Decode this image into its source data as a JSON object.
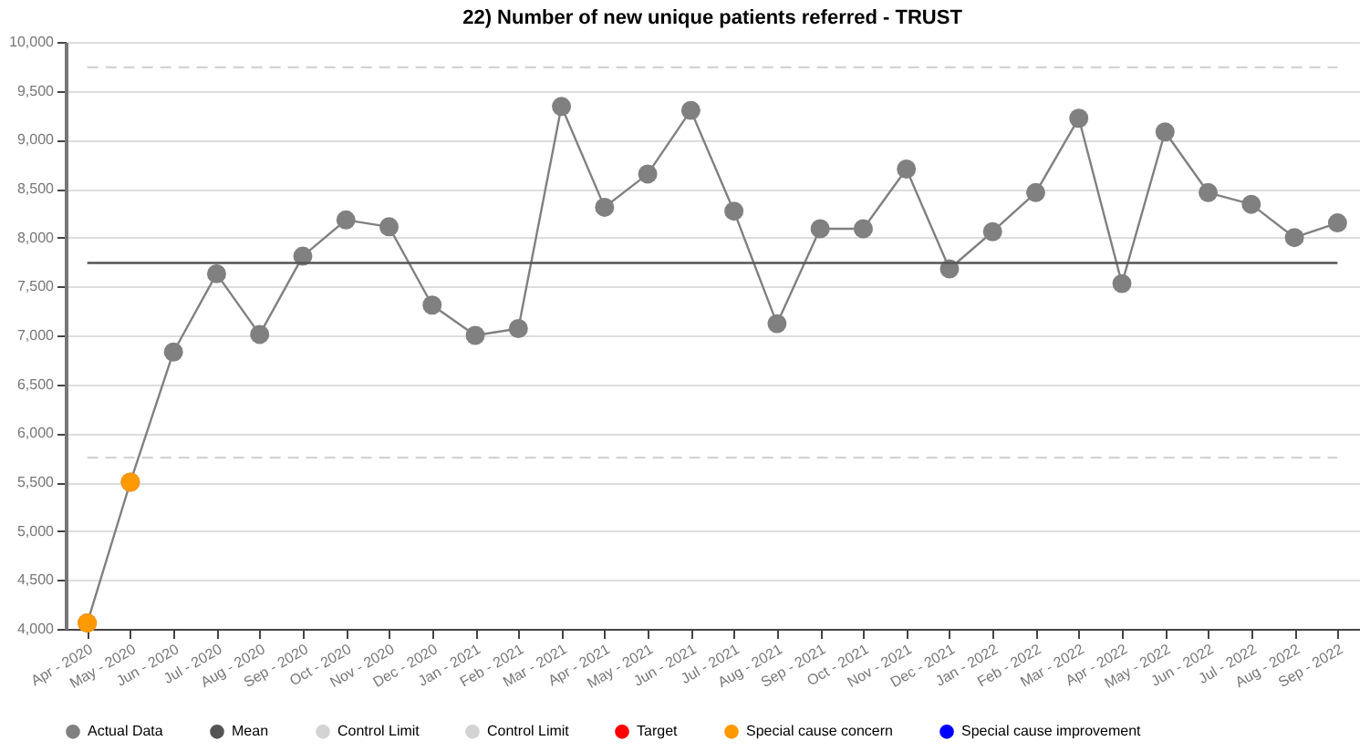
{
  "chart_data": {
    "type": "line",
    "title": "22) Number of new unique patients referred - TRUST",
    "categories": [
      "Apr - 2020",
      "May - 2020",
      "Jun - 2020",
      "Jul - 2020",
      "Aug - 2020",
      "Sep - 2020",
      "Oct - 2020",
      "Nov - 2020",
      "Dec - 2020",
      "Jan - 2021",
      "Feb - 2021",
      "Mar - 2021",
      "Apr - 2021",
      "May - 2021",
      "Jun - 2021",
      "Jul - 2021",
      "Aug - 2021",
      "Sep - 2021",
      "Oct - 2021",
      "Nov - 2021",
      "Dec - 2021",
      "Jan - 2022",
      "Feb - 2022",
      "Mar - 2022",
      "Apr - 2022",
      "May - 2022",
      "Jun - 2022",
      "Jul - 2022",
      "Aug - 2022",
      "Sep - 2022"
    ],
    "series": [
      {
        "name": "Actual Data",
        "color": "#808080",
        "marker": "circle",
        "values": [
          4060,
          5500,
          6830,
          7630,
          7010,
          7810,
          8180,
          8110,
          7310,
          7000,
          7070,
          9340,
          8310,
          8650,
          9300,
          8270,
          7120,
          8090,
          8090,
          8700,
          7680,
          8060,
          8460,
          9220,
          7530,
          9080,
          8460,
          8340,
          8000,
          8150
        ]
      },
      {
        "name": "Mean",
        "color": "#555555",
        "line_style": "solid",
        "values": [
          7740,
          7740,
          7740,
          7740,
          7740,
          7740,
          7740,
          7740,
          7740,
          7740,
          7740,
          7740,
          7740,
          7740,
          7740,
          7740,
          7740,
          7740,
          7740,
          7740,
          7740,
          7740,
          7740,
          7740,
          7740,
          7740,
          7740,
          7740,
          7740,
          7740
        ]
      },
      {
        "name": "Control Limit",
        "type": "line",
        "color": "#d3d3d3",
        "line_style": "dashed",
        "values": [
          9740,
          9740,
          9740,
          9740,
          9740,
          9740,
          9740,
          9740,
          9740,
          9740,
          9740,
          9740,
          9740,
          9740,
          9740,
          9740,
          9740,
          9740,
          9740,
          9740,
          9740,
          9740,
          9740,
          9740,
          9740,
          9740,
          9740,
          9740,
          9740,
          9740
        ]
      },
      {
        "name": "Control Limit ",
        "type": "line",
        "color": "#d3d3d3",
        "line_style": "dashed",
        "values": [
          5750,
          5750,
          5750,
          5750,
          5750,
          5750,
          5750,
          5750,
          5750,
          5750,
          5750,
          5750,
          5750,
          5750,
          5750,
          5750,
          5750,
          5750,
          5750,
          5750,
          5750,
          5750,
          5750,
          5750,
          5750,
          5750,
          5750,
          5750,
          5750,
          5750
        ]
      },
      {
        "name": "Target",
        "type": "line",
        "color": "#ff0000",
        "line_style": "dashed",
        "values": [
          null,
          null,
          null,
          null,
          null,
          null,
          null,
          null,
          null,
          null,
          null,
          null,
          null,
          null,
          null,
          null,
          null,
          null,
          null,
          null,
          null,
          null,
          null,
          null,
          null,
          null,
          null,
          null,
          null,
          null
        ]
      },
      {
        "name": "Special cause concern",
        "type": "scatter",
        "color": "#ff9900",
        "values": [
          4060,
          5500,
          null,
          null,
          null,
          null,
          null,
          null,
          null,
          null,
          null,
          null,
          null,
          null,
          null,
          null,
          null,
          null,
          null,
          null,
          null,
          null,
          null,
          null,
          null,
          null,
          null,
          null,
          null,
          null
        ]
      },
      {
        "name": "Special cause improvement",
        "type": "scatter",
        "color": "#0000ff",
        "values": [
          null,
          null,
          null,
          null,
          null,
          null,
          null,
          null,
          null,
          null,
          null,
          null,
          null,
          null,
          null,
          null,
          null,
          null,
          null,
          null,
          null,
          null,
          null,
          null,
          null,
          null,
          null,
          null,
          null,
          null
        ]
      }
    ],
    "ylim": [
      4000,
      10000
    ],
    "yticks": [
      {
        "value": 4000,
        "label": "4,000"
      },
      {
        "value": 4500,
        "label": "4,500"
      },
      {
        "value": 5000,
        "label": "5,000"
      },
      {
        "value": 5500,
        "label": "5,500"
      },
      {
        "value": 6000,
        "label": "6,000"
      },
      {
        "value": 6500,
        "label": "6,500"
      },
      {
        "value": 7000,
        "label": "7,000"
      },
      {
        "value": 7500,
        "label": "7,500"
      },
      {
        "value": 8000,
        "label": "8,000"
      },
      {
        "value": 8500,
        "label": "8,500"
      },
      {
        "value": 9000,
        "label": "9,000"
      },
      {
        "value": 9500,
        "label": "9,500"
      },
      {
        "value": 10000,
        "label": "10,000"
      }
    ],
    "grid": "y",
    "legend": "bottom"
  }
}
